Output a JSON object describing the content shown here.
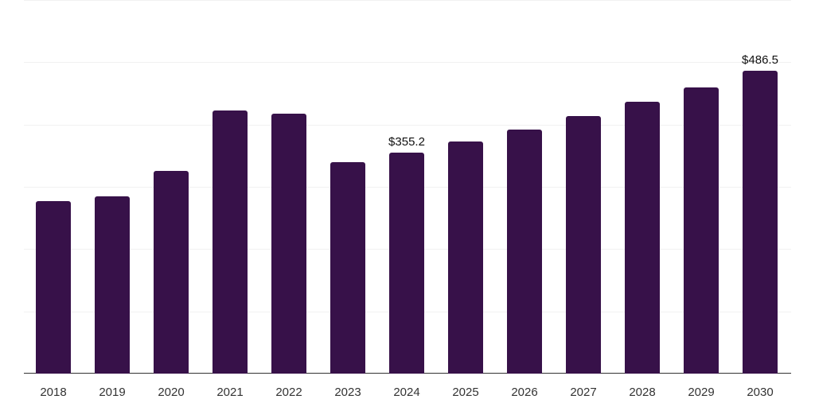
{
  "chart_data": {
    "type": "bar",
    "title": "",
    "xlabel": "",
    "ylabel": "",
    "categories": [
      "2018",
      "2019",
      "2020",
      "2021",
      "2022",
      "2023",
      "2024",
      "2025",
      "2026",
      "2027",
      "2028",
      "2029",
      "2030"
    ],
    "values": [
      277,
      285,
      326,
      423,
      418,
      339,
      355.2,
      373,
      392,
      413,
      436,
      460,
      486.5
    ],
    "data_labels": [
      {
        "category": "2024",
        "text": "$355.2"
      },
      {
        "category": "2030",
        "text": "$486.5"
      }
    ],
    "ylim": [
      0,
      600
    ],
    "y_gridlines": [
      0,
      100,
      200,
      300,
      400,
      500,
      600
    ],
    "grid": true,
    "legend": null,
    "bar_color": "#371149"
  }
}
